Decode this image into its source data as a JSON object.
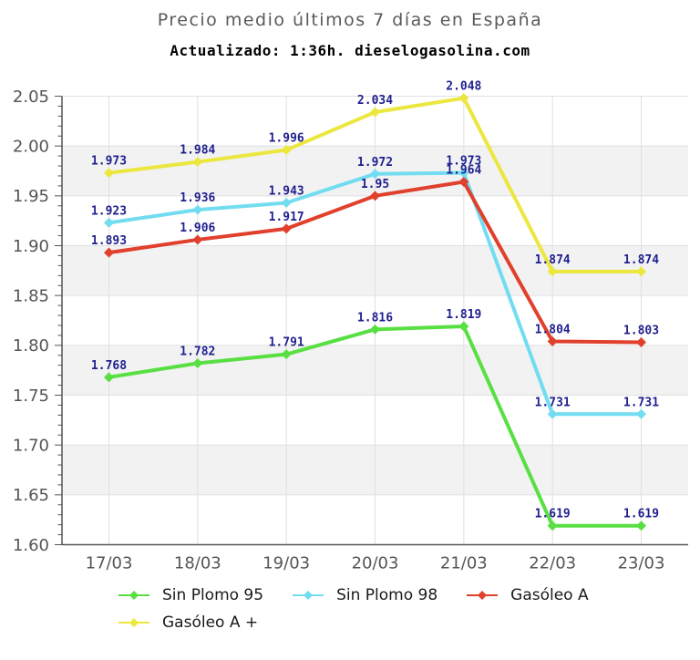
{
  "header": {
    "title": "Precio medio últimos 7 días en España",
    "subtitle": "Actualizado: 1:36h. dieselogasolina.com"
  },
  "chart_data": {
    "type": "line",
    "title": "Precio medio últimos 7 días en España",
    "subtitle": "Actualizado: 1:36h. dieselogasolina.com",
    "x": [
      "17/03",
      "18/03",
      "19/03",
      "20/03",
      "21/03",
      "22/03",
      "23/03"
    ],
    "series": [
      {
        "name": "Sin Plomo 95",
        "color": "#58df41",
        "values": [
          1.768,
          1.782,
          1.791,
          1.816,
          1.819,
          1.619,
          1.619
        ]
      },
      {
        "name": "Sin Plomo 98",
        "color": "#72dcf0",
        "values": [
          1.923,
          1.936,
          1.943,
          1.972,
          1.973,
          1.731,
          1.731
        ]
      },
      {
        "name": "Gasóleo A",
        "color": "#e0402c",
        "values": [
          1.893,
          1.906,
          1.917,
          1.95,
          1.964,
          1.804,
          1.803
        ]
      },
      {
        "name": "Gasóleo A +",
        "color": "#ece73f",
        "values": [
          1.973,
          1.984,
          1.996,
          2.034,
          2.048,
          1.874,
          1.874
        ]
      }
    ],
    "ylim": [
      1.6,
      2.05
    ],
    "ytick_step": 0.05,
    "ytick_minor_step": 0.01,
    "ytick_labels": [
      "1.60",
      "1.65",
      "1.70",
      "1.75",
      "1.80",
      "1.85",
      "1.90",
      "1.95",
      "2.00",
      "2.05"
    ],
    "grid": true,
    "band_color": "#f2f2f2",
    "grid_color": "#e0e0e0",
    "axis_color": "#555555",
    "tick_label_color": "#555555",
    "point_label_color": "#1f1f8f",
    "legend_position": "bottom"
  }
}
